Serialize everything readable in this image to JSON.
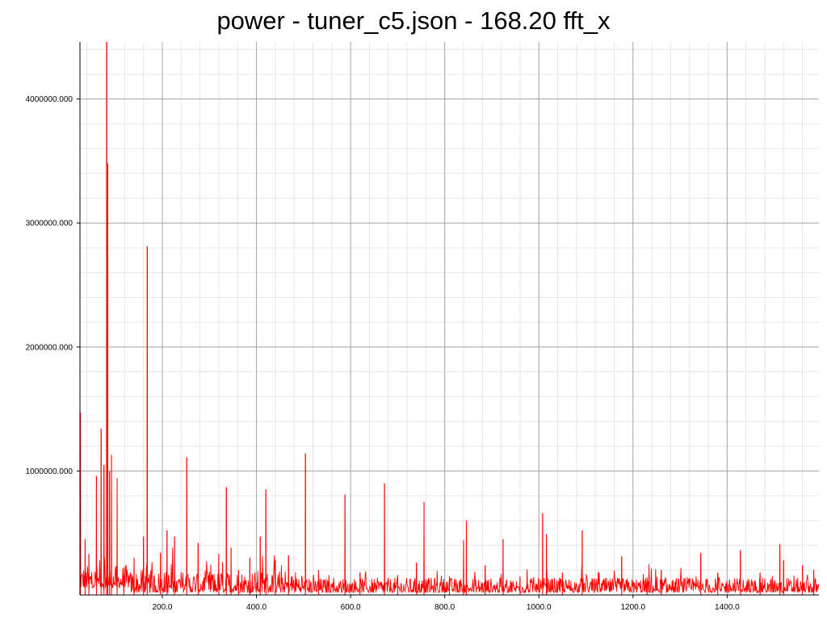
{
  "chart_data": {
    "type": "line",
    "title": "power - tuner_c5.json - 168.20 fft_x",
    "xlabel": "",
    "ylabel": "",
    "xlim": [
      25,
      1595
    ],
    "ylim": [
      0,
      4460000
    ],
    "grid": true,
    "line_color": "#ff0000",
    "x_ticks": [
      {
        "value": 200,
        "label": "200.0"
      },
      {
        "value": 400,
        "label": "400.0"
      },
      {
        "value": 600,
        "label": "600.0"
      },
      {
        "value": 800,
        "label": "800.0"
      },
      {
        "value": 1000,
        "label": "1000.0"
      },
      {
        "value": 1200,
        "label": "1200.0"
      },
      {
        "value": 1400,
        "label": "1400.0"
      }
    ],
    "y_ticks": [
      {
        "value": 1000000,
        "label": "1000000.000"
      },
      {
        "value": 2000000,
        "label": "2000000.000"
      },
      {
        "value": 3000000,
        "label": "3000000.000"
      },
      {
        "value": 4000000,
        "label": "4000000.000"
      }
    ],
    "series": [
      {
        "peaks": [
          {
            "x": 26,
            "y": 1470000
          },
          {
            "x": 36,
            "y": 450000
          },
          {
            "x": 44,
            "y": 330000
          },
          {
            "x": 60,
            "y": 960000
          },
          {
            "x": 70,
            "y": 1340000
          },
          {
            "x": 76,
            "y": 1050000
          },
          {
            "x": 82,
            "y": 4460000
          },
          {
            "x": 84,
            "y": 3480000
          },
          {
            "x": 88,
            "y": 1000000
          },
          {
            "x": 92,
            "y": 1130000
          },
          {
            "x": 104,
            "y": 940000
          },
          {
            "x": 118,
            "y": 160000
          },
          {
            "x": 140,
            "y": 300000
          },
          {
            "x": 160,
            "y": 470000
          },
          {
            "x": 168,
            "y": 2810000
          },
          {
            "x": 196,
            "y": 340000
          },
          {
            "x": 210,
            "y": 520000
          },
          {
            "x": 226,
            "y": 470000
          },
          {
            "x": 252,
            "y": 1110000
          },
          {
            "x": 276,
            "y": 420000
          },
          {
            "x": 320,
            "y": 330000
          },
          {
            "x": 336,
            "y": 870000
          },
          {
            "x": 346,
            "y": 380000
          },
          {
            "x": 362,
            "y": 200000
          },
          {
            "x": 386,
            "y": 300000
          },
          {
            "x": 408,
            "y": 470000
          },
          {
            "x": 420,
            "y": 850000
          },
          {
            "x": 440,
            "y": 280000
          },
          {
            "x": 468,
            "y": 320000
          },
          {
            "x": 504,
            "y": 1140000
          },
          {
            "x": 532,
            "y": 200000
          },
          {
            "x": 588,
            "y": 810000
          },
          {
            "x": 620,
            "y": 180000
          },
          {
            "x": 672,
            "y": 900000
          },
          {
            "x": 700,
            "y": 160000
          },
          {
            "x": 740,
            "y": 260000
          },
          {
            "x": 756,
            "y": 750000
          },
          {
            "x": 810,
            "y": 150000
          },
          {
            "x": 840,
            "y": 440000
          },
          {
            "x": 846,
            "y": 600000
          },
          {
            "x": 886,
            "y": 240000
          },
          {
            "x": 924,
            "y": 450000
          },
          {
            "x": 960,
            "y": 150000
          },
          {
            "x": 1008,
            "y": 660000
          },
          {
            "x": 1016,
            "y": 490000
          },
          {
            "x": 1050,
            "y": 180000
          },
          {
            "x": 1092,
            "y": 520000
          },
          {
            "x": 1176,
            "y": 310000
          },
          {
            "x": 1230,
            "y": 140000
          },
          {
            "x": 1260,
            "y": 200000
          },
          {
            "x": 1344,
            "y": 340000
          },
          {
            "x": 1380,
            "y": 180000
          },
          {
            "x": 1428,
            "y": 360000
          },
          {
            "x": 1470,
            "y": 180000
          },
          {
            "x": 1512,
            "y": 410000
          },
          {
            "x": 1520,
            "y": 280000
          },
          {
            "x": 1560,
            "y": 240000
          },
          {
            "x": 1584,
            "y": 200000
          }
        ]
      }
    ]
  }
}
